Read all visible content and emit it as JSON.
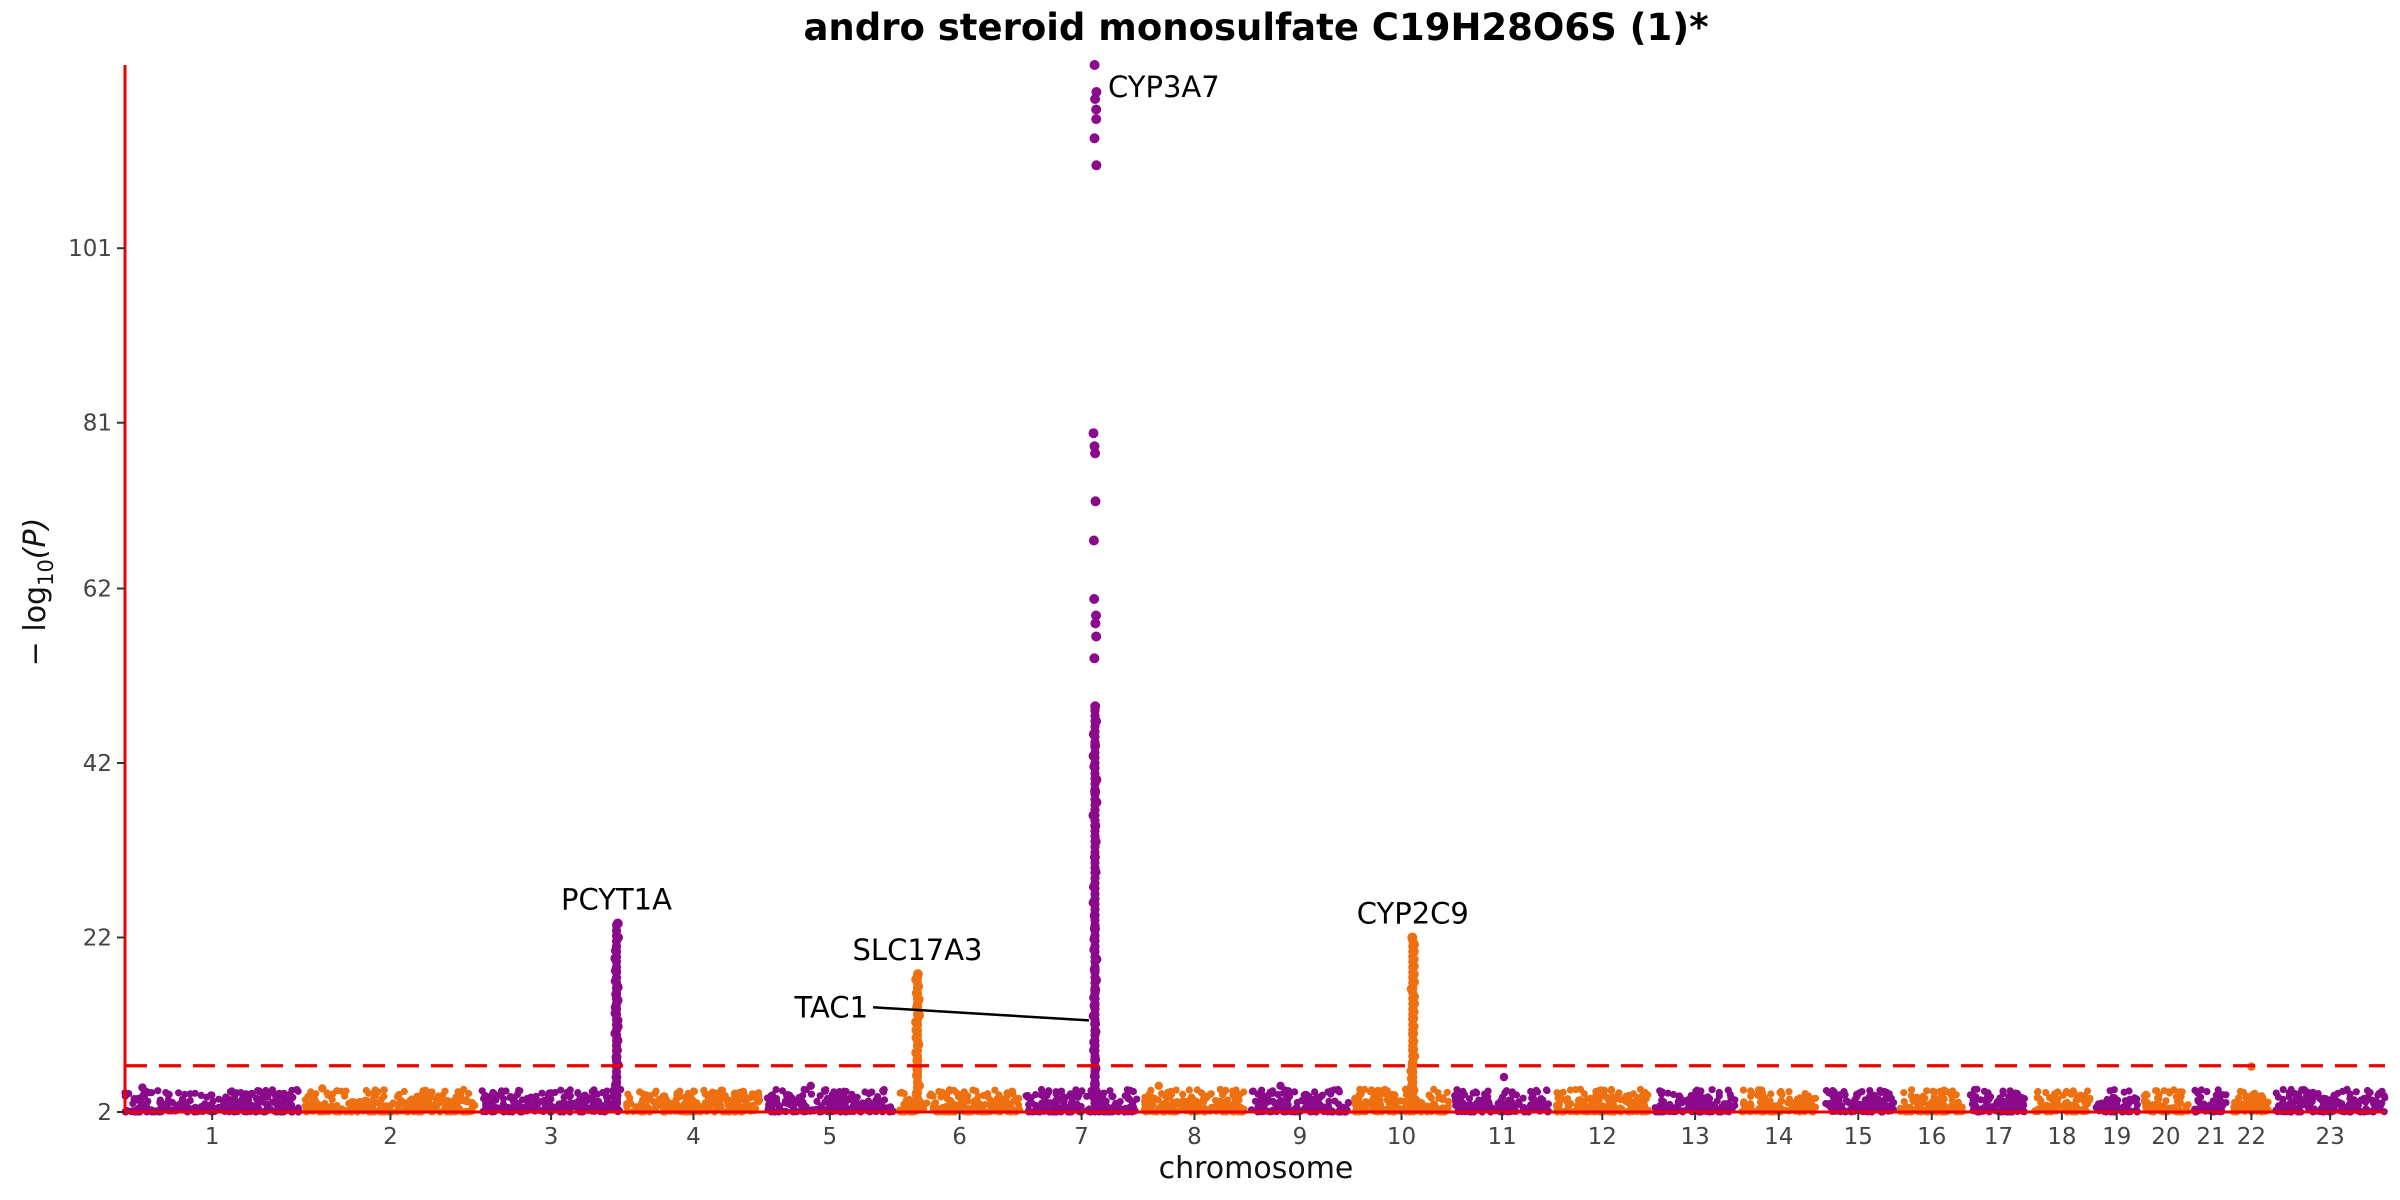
{
  "chart_data": {
    "type": "scatter",
    "subtype": "manhattan",
    "title": "andro steroid monosulfate C19H28O6S (1)*",
    "xlabel": "chromosome",
    "ylabel_prefix": "− log",
    "ylabel_sub": "10",
    "ylabel_suffix": "(P)",
    "ylim": [
      2,
      122
    ],
    "yticks": [
      2,
      22,
      42,
      62,
      81,
      101
    ],
    "threshold": 7.3,
    "colors": {
      "odd": "#8b0a8b",
      "even": "#ee7011",
      "axis": "#ee0000",
      "threshold": "#ee0000"
    },
    "chromosomes": [
      {
        "label": "1",
        "size": 248
      },
      {
        "label": "2",
        "size": 242
      },
      {
        "label": "3",
        "size": 198
      },
      {
        "label": "4",
        "size": 190
      },
      {
        "label": "5",
        "size": 181
      },
      {
        "label": "6",
        "size": 171
      },
      {
        "label": "7",
        "size": 159
      },
      {
        "label": "8",
        "size": 145
      },
      {
        "label": "9",
        "size": 138
      },
      {
        "label": "10",
        "size": 134
      },
      {
        "label": "11",
        "size": 135
      },
      {
        "label": "12",
        "size": 133
      },
      {
        "label": "13",
        "size": 114
      },
      {
        "label": "14",
        "size": 107
      },
      {
        "label": "15",
        "size": 102
      },
      {
        "label": "16",
        "size": 90
      },
      {
        "label": "17",
        "size": 83
      },
      {
        "label": "18",
        "size": 80
      },
      {
        "label": "19",
        "size": 59
      },
      {
        "label": "20",
        "size": 64
      },
      {
        "label": "21",
        "size": 47
      },
      {
        "label": "22",
        "size": 51
      },
      {
        "label": "23",
        "size": 156
      }
    ],
    "peaks": [
      {
        "chrom": "3",
        "pos": 0.97,
        "values": [
          3.5,
          4.2,
          5.1,
          6.0,
          7.4,
          8.3,
          9.1,
          10.2,
          11.0,
          11.8,
          12.5,
          13.3,
          14.0,
          14.8,
          15.5,
          16.3,
          17.0,
          18.2,
          19.6,
          20.5,
          22.0,
          23.6
        ]
      },
      {
        "chrom": "6",
        "pos": 0.15,
        "values": [
          3.4,
          4.1,
          5.0,
          6.2,
          7.0,
          7.9,
          8.8,
          9.7,
          10.5,
          11.4,
          12.3,
          13.1,
          14.0,
          14.9,
          15.6,
          16.4,
          17.2,
          17.8
        ]
      },
      {
        "chrom": "7",
        "pos": 0.62,
        "values": [
          3.6,
          4.4,
          5.2,
          6.1,
          7.0,
          8.0,
          9.1,
          10.0,
          11.2,
          12.1,
          13.0,
          14.2,
          15.1,
          16.0,
          17.1,
          18.3,
          19.5,
          20.6,
          21.8,
          23.0,
          24.5,
          26.0,
          27.8,
          29.5,
          31.2,
          33.0,
          34.8,
          36.0,
          37.5,
          38.7,
          40.1,
          41.6,
          42.8,
          44.0,
          45.3,
          46.8,
          48.5,
          54.0,
          56.5,
          58.0,
          58.9,
          60.8,
          67.5,
          72.0,
          77.5,
          78.3,
          79.8,
          110.5,
          113.6,
          115.8,
          116.9,
          118.1,
          118.9,
          122.0
        ]
      },
      {
        "chrom": "10",
        "pos": 0.62,
        "values": [
          3.4,
          4.1,
          4.9,
          5.8,
          6.7,
          7.5,
          8.4,
          9.2,
          10.1,
          11.0,
          11.8,
          12.7,
          13.5,
          14.4,
          15.2,
          16.1,
          16.9,
          17.8,
          18.7,
          19.5,
          20.4,
          21.2,
          22.0
        ]
      }
    ],
    "annotations": [
      {
        "label": "CYP3A7",
        "chrom": "7",
        "pos": 0.62,
        "value": 119.5,
        "anchor": "right"
      },
      {
        "label": "PCYT1A",
        "chrom": "3",
        "pos": 0.97,
        "value": 23.6,
        "anchor": "above"
      },
      {
        "label": "SLC17A3",
        "chrom": "6",
        "pos": 0.15,
        "value": 17.8,
        "anchor": "above"
      },
      {
        "label": "TAC1",
        "chrom": "7",
        "pos": 0.62,
        "value": 12.5,
        "anchor": "leader",
        "label_value": 14.0,
        "label_chrom": "5",
        "label_pos": 0.8
      },
      {
        "label": "CYP2C9",
        "chrom": "10",
        "pos": 0.62,
        "value": 22.0,
        "anchor": "above"
      }
    ],
    "extra_points": [
      {
        "chrom": "11",
        "pos": 0.52,
        "value": 6.0
      },
      {
        "chrom": "22",
        "pos": 0.5,
        "value": 7.2
      },
      {
        "chrom": "5",
        "pos": 0.35,
        "value": 5.0
      },
      {
        "chrom": "9",
        "pos": 0.3,
        "value": 5.0
      },
      {
        "chrom": "8",
        "pos": 0.15,
        "value": 5.0
      },
      {
        "chrom": "2",
        "pos": 0.1,
        "value": 4.7
      },
      {
        "chrom": "1",
        "pos": 0.1,
        "value": 4.8
      }
    ]
  }
}
